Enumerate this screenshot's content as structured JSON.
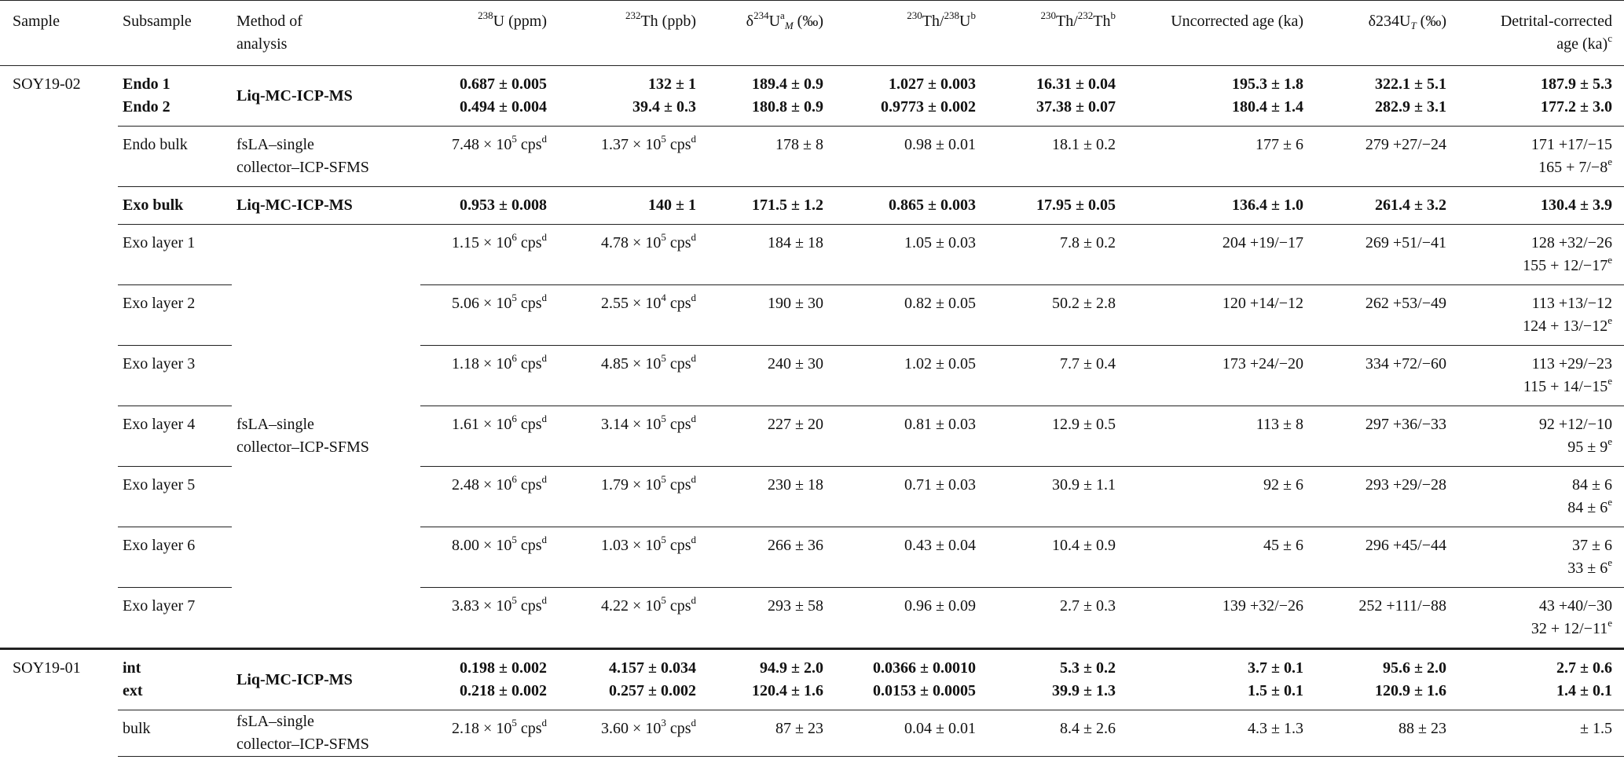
{
  "table": {
    "headers": [
      [
        "Sample"
      ],
      [
        "Subsample"
      ],
      [
        "Method of",
        "analysis"
      ],
      [
        [
          {
            "sup": "238"
          },
          "U (ppm)"
        ]
      ],
      [
        [
          {
            "sup": "232"
          },
          "Th (ppb)"
        ]
      ],
      [
        [
          "δ",
          {
            "sup": "234"
          },
          "U",
          {
            "sup": "a"
          },
          {
            "sub": "M"
          },
          " (‰)"
        ]
      ],
      [
        [
          {
            "sup": "230"
          },
          "Th/",
          {
            "sup": "238"
          },
          "U",
          {
            "sup": "b"
          }
        ]
      ],
      [
        [
          {
            "sup": "230"
          },
          "Th/",
          {
            "sup": "232"
          },
          "Th",
          {
            "sup": "b"
          }
        ]
      ],
      [
        "Uncorrected age (ka)"
      ],
      [
        [
          "δ234U",
          {
            "sub": "T"
          },
          " (‰)"
        ]
      ],
      [
        "Detrital-corrected",
        [
          "age (ka)",
          {
            "sup": "c"
          }
        ]
      ]
    ],
    "sections": [
      {
        "sample": [
          "SOY19-02"
        ],
        "groups": [
          {
            "method": [
              "Liq-MC-ICP-MS"
            ],
            "bold": true,
            "blocks": [
              [
                [
                  [
                    "Endo 1"
                  ],
                  [
                    "0.687 ± 0.005"
                  ],
                  [
                    "132 ± 1"
                  ],
                  [
                    "189.4 ± 0.9"
                  ],
                  [
                    "1.027 ± 0.003"
                  ],
                  [
                    "16.31 ± 0.04"
                  ],
                  [
                    "195.3 ± 1.8"
                  ],
                  [
                    "322.1 ± 5.1"
                  ],
                  [
                    "187.9 ± 5.3"
                  ]
                ],
                [
                  [
                    "Endo 2"
                  ],
                  [
                    "0.494 ± 0.004"
                  ],
                  [
                    "39.4 ± 0.3"
                  ],
                  [
                    "180.8 ± 0.9"
                  ],
                  [
                    "0.9773 ± 0.002"
                  ],
                  [
                    "37.38 ± 0.07"
                  ],
                  [
                    "180.4 ± 1.4"
                  ],
                  [
                    "282.9 ± 3.1"
                  ],
                  [
                    "177.2 ± 3.0"
                  ]
                ]
              ]
            ]
          },
          {
            "method": [
              "fsLA–single",
              "collector–ICP-SFMS"
            ],
            "bold": false,
            "blocks": [
              [
                [
                  [
                    "Endo bulk"
                  ],
                  [
                    [
                      "7.48 × 10",
                      {
                        "sup": "5"
                      },
                      " cps",
                      {
                        "sup": "d"
                      }
                    ]
                  ],
                  [
                    [
                      "1.37 × 10",
                      {
                        "sup": "5"
                      },
                      " cps",
                      {
                        "sup": "d"
                      }
                    ]
                  ],
                  [
                    "178 ± 8"
                  ],
                  [
                    "0.98 ± 0.01"
                  ],
                  [
                    "18.1 ± 0.2"
                  ],
                  [
                    "177 ± 6"
                  ],
                  [
                    "279 +27/−24"
                  ],
                  [
                    "171 +17/−15",
                    [
                      "165 + 7/−8",
                      {
                        "sup": "e"
                      }
                    ]
                  ]
                ]
              ]
            ]
          },
          {
            "method": [
              "Liq-MC-ICP-MS"
            ],
            "bold": true,
            "blocks": [
              [
                [
                  [
                    "Exo bulk"
                  ],
                  [
                    "0.953 ± 0.008"
                  ],
                  [
                    "140 ± 1"
                  ],
                  [
                    "171.5 ± 1.2"
                  ],
                  [
                    "0.865 ± 0.003"
                  ],
                  [
                    "17.95 ± 0.05"
                  ],
                  [
                    "136.4 ± 1.0"
                  ],
                  [
                    "261.4 ± 3.2"
                  ],
                  [
                    "130.4 ± 3.9"
                  ]
                ]
              ]
            ]
          },
          {
            "method": [
              "fsLA–single",
              "collector–ICP-SFMS"
            ],
            "bold": false,
            "blocks": [
              [
                [
                  [
                    "Exo layer 1"
                  ],
                  [
                    [
                      "1.15 × 10",
                      {
                        "sup": "6"
                      },
                      " cps",
                      {
                        "sup": "d"
                      }
                    ]
                  ],
                  [
                    [
                      "4.78 × 10",
                      {
                        "sup": "5"
                      },
                      " cps",
                      {
                        "sup": "d"
                      }
                    ]
                  ],
                  [
                    "184 ± 18"
                  ],
                  [
                    "1.05 ± 0.03"
                  ],
                  [
                    "7.8 ± 0.2"
                  ],
                  [
                    "204 +19/−17"
                  ],
                  [
                    "269 +51/−41"
                  ],
                  [
                    "128 +32/−26",
                    [
                      "155 + 12/−17",
                      {
                        "sup": "e"
                      }
                    ]
                  ]
                ]
              ],
              [
                [
                  [
                    "Exo layer 2"
                  ],
                  [
                    [
                      "5.06 × 10",
                      {
                        "sup": "5"
                      },
                      " cps",
                      {
                        "sup": "d"
                      }
                    ]
                  ],
                  [
                    [
                      "2.55 × 10",
                      {
                        "sup": "4"
                      },
                      " cps",
                      {
                        "sup": "d"
                      }
                    ]
                  ],
                  [
                    "190 ± 30"
                  ],
                  [
                    "0.82 ± 0.05"
                  ],
                  [
                    "50.2 ± 2.8"
                  ],
                  [
                    "120 +14/−12"
                  ],
                  [
                    "262 +53/−49"
                  ],
                  [
                    "113 +13/−12",
                    [
                      "124 + 13/−12",
                      {
                        "sup": "e"
                      }
                    ]
                  ]
                ]
              ],
              [
                [
                  [
                    "Exo layer 3"
                  ],
                  [
                    [
                      "1.18 × 10",
                      {
                        "sup": "6"
                      },
                      " cps",
                      {
                        "sup": "d"
                      }
                    ]
                  ],
                  [
                    [
                      "4.85 × 10",
                      {
                        "sup": "5"
                      },
                      " cps",
                      {
                        "sup": "d"
                      }
                    ]
                  ],
                  [
                    "240 ± 30"
                  ],
                  [
                    "1.02 ± 0.05"
                  ],
                  [
                    "7.7 ± 0.4"
                  ],
                  [
                    "173 +24/−20"
                  ],
                  [
                    "334 +72/−60"
                  ],
                  [
                    "113 +29/−23",
                    [
                      "115 + 14/−15",
                      {
                        "sup": "e"
                      }
                    ]
                  ]
                ]
              ],
              [
                [
                  [
                    "Exo layer 4"
                  ],
                  [
                    [
                      "1.61 × 10",
                      {
                        "sup": "6"
                      },
                      " cps",
                      {
                        "sup": "d"
                      }
                    ]
                  ],
                  [
                    [
                      "3.14 × 10",
                      {
                        "sup": "5"
                      },
                      " cps",
                      {
                        "sup": "d"
                      }
                    ]
                  ],
                  [
                    "227 ± 20"
                  ],
                  [
                    "0.81 ± 0.03"
                  ],
                  [
                    "12.9 ± 0.5"
                  ],
                  [
                    "113 ± 8"
                  ],
                  [
                    "297 +36/−33"
                  ],
                  [
                    "92 +12/−10",
                    [
                      "95 ± 9",
                      {
                        "sup": "e"
                      }
                    ]
                  ]
                ]
              ],
              [
                [
                  [
                    "Exo layer 5"
                  ],
                  [
                    [
                      "2.48 × 10",
                      {
                        "sup": "6"
                      },
                      " cps",
                      {
                        "sup": "d"
                      }
                    ]
                  ],
                  [
                    [
                      "1.79 × 10",
                      {
                        "sup": "5"
                      },
                      " cps",
                      {
                        "sup": "d"
                      }
                    ]
                  ],
                  [
                    "230 ± 18"
                  ],
                  [
                    "0.71 ± 0.03"
                  ],
                  [
                    "30.9 ± 1.1"
                  ],
                  [
                    "92 ± 6"
                  ],
                  [
                    "293 +29/−28"
                  ],
                  [
                    "84 ± 6",
                    [
                      "84 ± 6",
                      {
                        "sup": "e"
                      }
                    ]
                  ]
                ]
              ],
              [
                [
                  [
                    "Exo layer 6"
                  ],
                  [
                    [
                      "8.00 × 10",
                      {
                        "sup": "5"
                      },
                      " cps",
                      {
                        "sup": "d"
                      }
                    ]
                  ],
                  [
                    [
                      "1.03 × 10",
                      {
                        "sup": "5"
                      },
                      " cps",
                      {
                        "sup": "d"
                      }
                    ]
                  ],
                  [
                    "266 ± 36"
                  ],
                  [
                    "0.43 ± 0.04"
                  ],
                  [
                    "10.4 ± 0.9"
                  ],
                  [
                    "45 ± 6"
                  ],
                  [
                    "296 +45/−44"
                  ],
                  [
                    "37 ± 6",
                    [
                      "33 ± 6",
                      {
                        "sup": "e"
                      }
                    ]
                  ]
                ]
              ],
              [
                [
                  [
                    "Exo layer 7"
                  ],
                  [
                    [
                      "3.83 × 10",
                      {
                        "sup": "5"
                      },
                      " cps",
                      {
                        "sup": "d"
                      }
                    ]
                  ],
                  [
                    [
                      "4.22 × 10",
                      {
                        "sup": "5"
                      },
                      " cps",
                      {
                        "sup": "d"
                      }
                    ]
                  ],
                  [
                    "293 ± 58"
                  ],
                  [
                    "0.96 ± 0.09"
                  ],
                  [
                    "2.7 ± 0.3"
                  ],
                  [
                    "139 +32/−26"
                  ],
                  [
                    "252 +111/−88"
                  ],
                  [
                    "43 +40/−30",
                    [
                      "32 + 12/−11",
                      {
                        "sup": "e"
                      }
                    ]
                  ]
                ]
              ]
            ]
          }
        ]
      },
      {
        "sample": [
          "SOY19-01"
        ],
        "groups": [
          {
            "method": [
              "Liq-MC-ICP-MS"
            ],
            "bold": true,
            "blocks": [
              [
                [
                  [
                    "int"
                  ],
                  [
                    "0.198 ± 0.002"
                  ],
                  [
                    "4.157 ± 0.034"
                  ],
                  [
                    "94.9 ± 2.0"
                  ],
                  [
                    "0.0366 ± 0.0010"
                  ],
                  [
                    "5.3 ± 0.2"
                  ],
                  [
                    "3.7 ± 0.1"
                  ],
                  [
                    "95.6 ± 2.0"
                  ],
                  [
                    "2.7 ± 0.6"
                  ]
                ],
                [
                  [
                    "ext"
                  ],
                  [
                    "0.218 ± 0.002"
                  ],
                  [
                    "0.257 ± 0.002"
                  ],
                  [
                    "120.4 ± 1.6"
                  ],
                  [
                    "0.0153 ± 0.0005"
                  ],
                  [
                    "39.9 ± 1.3"
                  ],
                  [
                    "1.5 ± 0.1"
                  ],
                  [
                    "120.9 ± 1.6"
                  ],
                  [
                    "1.4 ± 0.1"
                  ]
                ]
              ]
            ]
          },
          {
            "method": [
              "fsLA–single",
              "collector–ICP-SFMS"
            ],
            "bold": false,
            "blocks": [
              [
                [
                  [
                    "bulk"
                  ],
                  [
                    [
                      "2.18 × 10",
                      {
                        "sup": "5"
                      },
                      " cps",
                      {
                        "sup": "d"
                      }
                    ]
                  ],
                  [
                    [
                      "3.60 × 10",
                      {
                        "sup": "3"
                      },
                      " cps",
                      {
                        "sup": "d"
                      }
                    ]
                  ],
                  [
                    "87 ± 23"
                  ],
                  [
                    "0.04 ± 0.01"
                  ],
                  [
                    "8.4 ± 2.6"
                  ],
                  [
                    "4.3 ± 1.3"
                  ],
                  [
                    "88 ± 23"
                  ],
                  [
                    "± 1.5"
                  ]
                ]
              ]
            ]
          }
        ]
      }
    ]
  }
}
